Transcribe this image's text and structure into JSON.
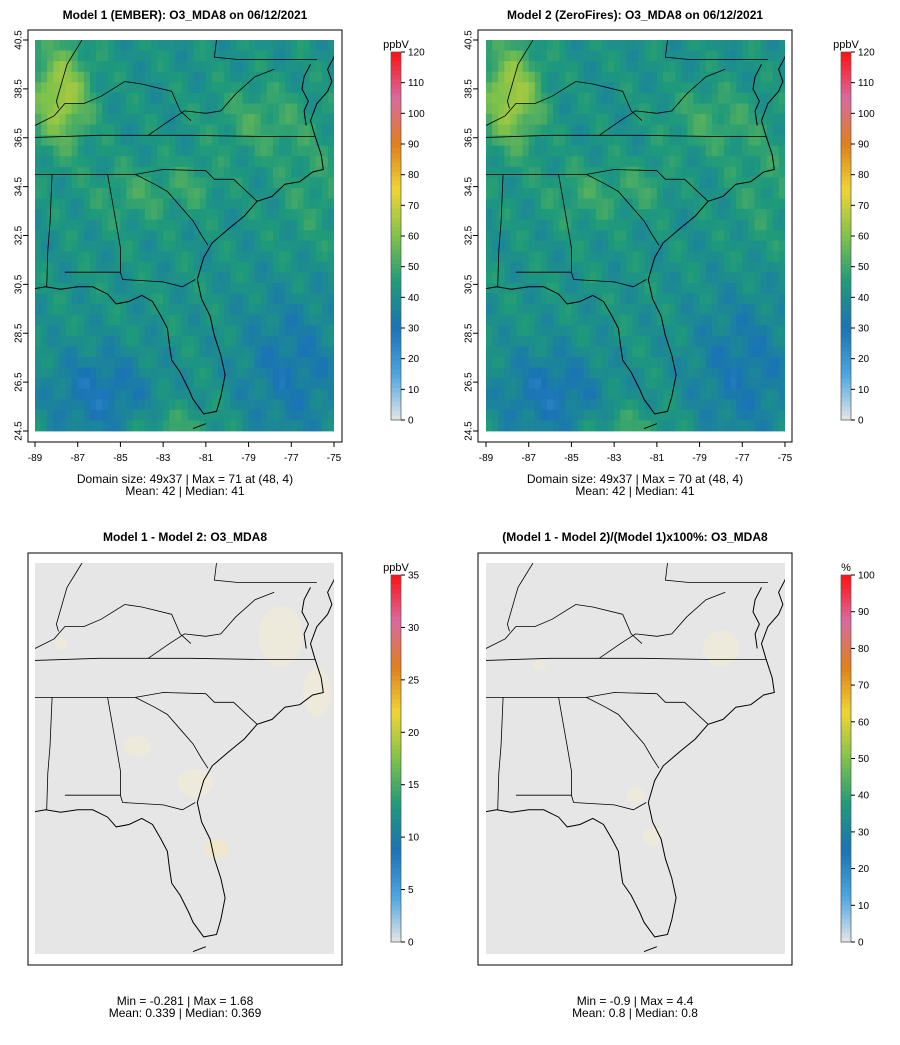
{
  "chart_data": [
    {
      "type": "heatmap",
      "title": "Model 1 (EMBER): O3_MDA8 on 06/12/2021",
      "colorbar_label": "ppbV",
      "colorbar_range": [
        0,
        120
      ],
      "colorbar_ticks": [
        "0",
        "10",
        "20",
        "30",
        "40",
        "50",
        "60",
        "70",
        "80",
        "90",
        "100",
        "110",
        "120"
      ],
      "x_ticks": [
        "-89",
        "-87",
        "-85",
        "-83",
        "-81",
        "-79",
        "-77",
        "-75"
      ],
      "y_ticks": [
        "24.5",
        "26.5",
        "28.5",
        "30.5",
        "32.5",
        "34.5",
        "36.5",
        "38.5",
        "40.5"
      ],
      "xlim": [
        -89,
        -75
      ],
      "ylim": [
        24.5,
        40.5
      ],
      "grid": "49x37",
      "stats_line1": "Domain size: 49x37 | Max = 71 at (48, 4)",
      "stats_line2": "Mean: 42 |  Median: 41",
      "max": 71,
      "mean": 42,
      "median": 41
    },
    {
      "type": "heatmap",
      "title": "Model 2 (ZeroFires): O3_MDA8 on 06/12/2021",
      "colorbar_label": "ppbV",
      "colorbar_range": [
        0,
        120
      ],
      "colorbar_ticks": [
        "0",
        "10",
        "20",
        "30",
        "40",
        "50",
        "60",
        "70",
        "80",
        "90",
        "100",
        "110",
        "120"
      ],
      "x_ticks": [
        "-89",
        "-87",
        "-85",
        "-83",
        "-81",
        "-79",
        "-77",
        "-75"
      ],
      "y_ticks": [
        "24.5",
        "26.5",
        "28.5",
        "30.5",
        "32.5",
        "34.5",
        "36.5",
        "38.5",
        "40.5"
      ],
      "xlim": [
        -89,
        -75
      ],
      "ylim": [
        24.5,
        40.5
      ],
      "grid": "49x37",
      "stats_line1": "Domain size: 49x37 | Max = 70 at (48, 4)",
      "stats_line2": "Mean: 42 |  Median: 41",
      "max": 70,
      "mean": 42,
      "median": 41
    },
    {
      "type": "heatmap",
      "title": "Model 1 - Model 2: O3_MDA8",
      "colorbar_label": "ppbV",
      "colorbar_range": [
        0,
        35
      ],
      "colorbar_ticks": [
        "0",
        "5",
        "10",
        "15",
        "20",
        "25",
        "30",
        "35"
      ],
      "stats_line1": "Min = -0.281 | Max = 1.68",
      "stats_line2": "Mean: 0.339 |  Median: 0.369",
      "min": -0.281,
      "max": 1.68,
      "mean": 0.339,
      "median": 0.369
    },
    {
      "type": "heatmap",
      "title": "(Model 1 - Model 2)/(Model 1)x100%: O3_MDA8",
      "colorbar_label": "%",
      "colorbar_range": [
        0,
        100
      ],
      "colorbar_ticks": [
        "0",
        "10",
        "20",
        "30",
        "40",
        "50",
        "60",
        "70",
        "80",
        "90",
        "100"
      ],
      "stats_line1": "Min = -0.9 | Max = 4.4",
      "stats_line2": "Mean: 0.8 |  Median: 0.8",
      "min": -0.9,
      "max": 4.4,
      "mean": 0.8,
      "median": 0.8
    }
  ],
  "colors": {
    "background": "#ffffff",
    "no_change": "#e6e6e6",
    "scale": [
      "#e6e6e6",
      "#4aa6e0",
      "#1a73b5",
      "#1f9a7a",
      "#7fc24a",
      "#f0d534",
      "#e07f1a",
      "#d96aa0",
      "#ff1010"
    ]
  }
}
